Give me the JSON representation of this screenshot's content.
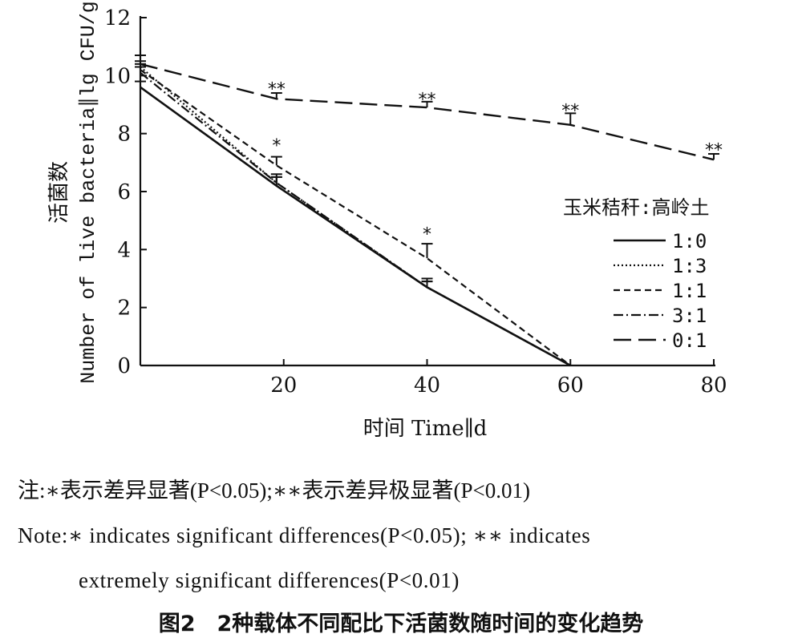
{
  "chart_data": {
    "type": "line",
    "title": "",
    "xlabel": "时间 Time∥d",
    "ylabel_cn": "活菌数",
    "ylabel_en": "Number of live bacteria∥lg CFU/g",
    "xlim": [
      0,
      80
    ],
    "ylim": [
      0,
      12
    ],
    "xticks": [
      "20",
      "40",
      "60",
      "80"
    ],
    "yticks": [
      "0",
      "2",
      "4",
      "6",
      "8",
      "10",
      "12"
    ],
    "grid": false,
    "legend_title": "玉米秸秆:高岭土",
    "legend_position": "right",
    "series": [
      {
        "name": "1:0",
        "style": "solid",
        "x": [
          0,
          19,
          40,
          60
        ],
        "y": [
          9.6,
          6.2,
          2.7,
          0
        ],
        "err": [
          0.2,
          0.3,
          0.3,
          0
        ]
      },
      {
        "name": "1:3",
        "style": "dotted",
        "x": [
          0,
          19,
          40,
          60
        ],
        "y": [
          10.3,
          6.3,
          2.7,
          0
        ],
        "err": [
          0.2,
          0.2,
          0.2,
          0
        ]
      },
      {
        "name": "1:1",
        "style": "dashed",
        "x": [
          0,
          19,
          40,
          60
        ],
        "y": [
          10.2,
          6.9,
          3.7,
          0
        ],
        "err": [
          0.2,
          0.3,
          0.5,
          0
        ]
      },
      {
        "name": "3:1",
        "style": "dashdot",
        "x": [
          0,
          19,
          40,
          60
        ],
        "y": [
          10.1,
          6.3,
          2.7,
          0
        ],
        "err": [
          0.2,
          0.3,
          0.2,
          0
        ]
      },
      {
        "name": "0:1",
        "style": "longdash",
        "x": [
          0,
          19,
          40,
          60,
          80
        ],
        "y": [
          10.4,
          9.2,
          8.9,
          8.3,
          7.1
        ],
        "err": [
          0.3,
          0.2,
          0.2,
          0.4,
          0.2
        ]
      }
    ],
    "annotations": [
      {
        "x": 19,
        "y": 9.55,
        "text": "**"
      },
      {
        "x": 40,
        "y": 9.2,
        "text": "**"
      },
      {
        "x": 60,
        "y": 8.8,
        "text": "**"
      },
      {
        "x": 80,
        "y": 7.45,
        "text": "**"
      },
      {
        "x": 19,
        "y": 7.6,
        "text": "*"
      },
      {
        "x": 40,
        "y": 4.55,
        "text": "*"
      }
    ]
  },
  "notes": {
    "cn": "注:∗表示差异显著(P<0.05);∗∗表示差异极显著(P<0.01)",
    "en1": "Note:∗ indicates significant differences(P<0.05); ∗∗ indicates",
    "en2": "extremely significant differences(P<0.01)"
  },
  "caption": "图2　2种载体不同配比下活菌数随时间的变化趋势"
}
